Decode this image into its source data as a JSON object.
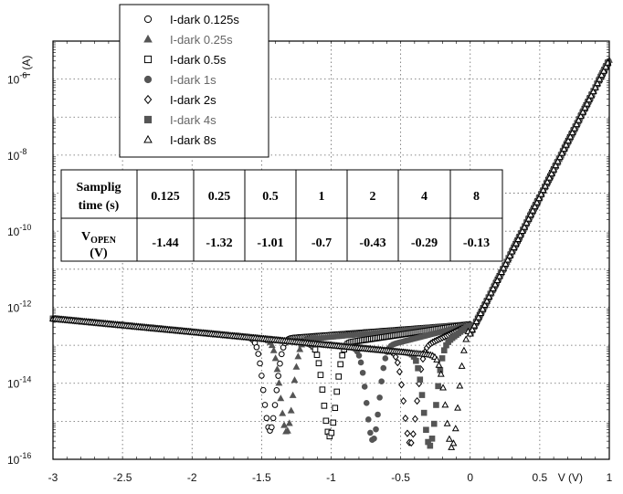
{
  "chart_data": {
    "type": "scatter",
    "title": "",
    "xlabel": "V (V)",
    "ylabel": "I (A)",
    "xlim": [
      -3,
      1
    ],
    "ylim_log10": [
      -16,
      -5
    ],
    "yscale": "log",
    "grid": true,
    "legend_position": "top-left",
    "x_ticks": [
      "-3",
      "-2.5",
      "-2",
      "-1.5",
      "-1",
      "-0.5",
      "0",
      "0.5",
      "1"
    ],
    "y_ticks": [
      {
        "base": "10",
        "exp": "-6",
        "value": -6
      },
      {
        "base": "10",
        "exp": "-8",
        "value": -8
      },
      {
        "base": "10",
        "exp": "-10",
        "value": -10
      },
      {
        "base": "10",
        "exp": "-12",
        "value": -12
      },
      {
        "base": "10",
        "exp": "-14",
        "value": -14
      },
      {
        "base": "10",
        "exp": "-16",
        "value": -16
      }
    ],
    "series": [
      {
        "name": "I-dark 0.125s",
        "marker": "circle-open",
        "color": "#000000",
        "vopen": -1.44
      },
      {
        "name": "I-dark 0.25s",
        "marker": "triangle-filled",
        "color": "#555555",
        "vopen": -1.32
      },
      {
        "name": "I-dark 0.5s",
        "marker": "square-open",
        "color": "#000000",
        "vopen": -1.01
      },
      {
        "name": "I-dark 1s",
        "marker": "circle-filled",
        "color": "#555555",
        "vopen": -0.7
      },
      {
        "name": "I-dark 2s",
        "marker": "diamond-open",
        "color": "#000000",
        "vopen": -0.43
      },
      {
        "name": "I-dark 4s",
        "marker": "square-filled",
        "color": "#555555",
        "vopen": -0.29
      },
      {
        "name": "I-dark 8s",
        "marker": "triangle-open",
        "color": "#000000",
        "vopen": -0.13
      }
    ],
    "table": {
      "row1_header_line1": "Samplig",
      "row1_header_line2": "time (s)",
      "row2_header_main": "V",
      "row2_header_sub": "OPEN",
      "row2_header_unit": "(V)",
      "times": [
        "0.125",
        "0.25",
        "0.5",
        "1",
        "2",
        "4",
        "8"
      ],
      "vopen": [
        "-1.44",
        "-1.32",
        "-1.01",
        "-0.7",
        "-0.43",
        "-0.29",
        "-0.13"
      ]
    }
  }
}
